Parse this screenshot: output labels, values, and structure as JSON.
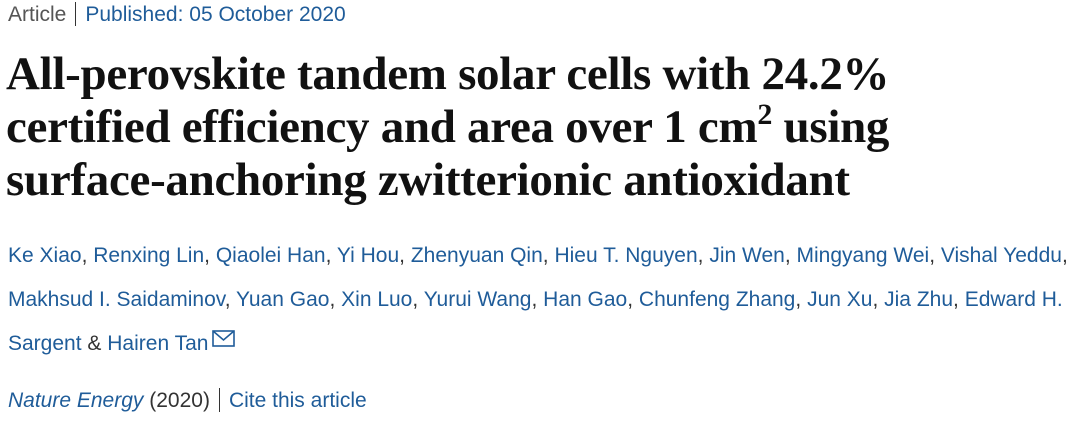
{
  "header": {
    "article_type": "Article",
    "published": "Published: 05 October 2020"
  },
  "title": {
    "line1": "All-perovskite tandem solar cells with 24.2%",
    "line2": "certified efficiency and area over 1  cm",
    "superscript": "2",
    "line2_end": "using",
    "line3": "surface-anchoring zwitterionic antioxidant"
  },
  "authors": {
    "names": [
      "Ke Xiao",
      "Renxing Lin",
      "Qiaolei Han",
      "Yi Hou",
      "Zhenyuan Qin",
      "Hieu T. Nguyen",
      "Jin Wen",
      "Mingyang Wei",
      "Vishal Yeddu",
      "Makhsud I. Saidaminov",
      "Yuan Gao",
      "Xin Luo",
      "Yurui Wang",
      "Han Gao",
      "Chunfeng Zhang",
      "Jun Xu",
      "Jia Zhu",
      "Edward H. Sargent",
      "Hairen Tan"
    ],
    "separator": ",",
    "last_connector": "&"
  },
  "citation": {
    "journal": "Nature Energy",
    "year": "(2020)",
    "cite_link": "Cite this article"
  }
}
